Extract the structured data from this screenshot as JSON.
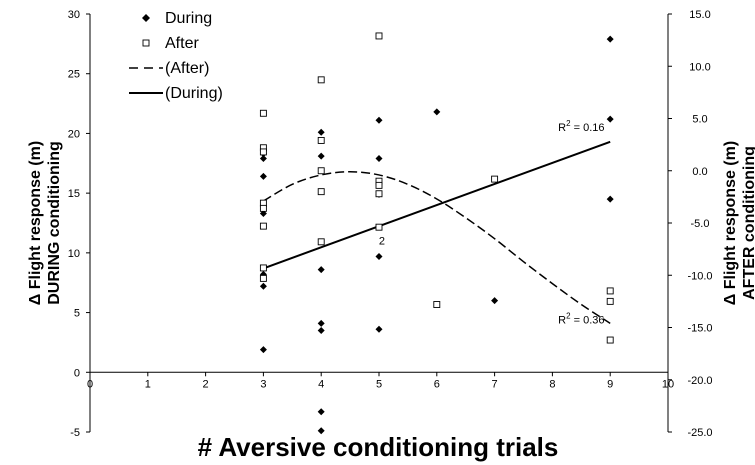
{
  "chart_data": {
    "type": "scatter",
    "xlabel": "# Aversive conditioning trials",
    "ylabel_left": [
      "Δ Flight response (m)",
      "DURING  conditioning"
    ],
    "ylabel_right": [
      "Δ Flight response (m)",
      "AFTER conditioning"
    ],
    "xlim": [
      0,
      10
    ],
    "ylim_left": [
      -5,
      30
    ],
    "ylim_right": [
      -25,
      15
    ],
    "x_ticks": [
      "0",
      "1",
      "2",
      "3",
      "4",
      "5",
      "6",
      "7",
      "8",
      "9",
      "10"
    ],
    "y_ticks_left": [
      "-5",
      "0",
      "5",
      "10",
      "15",
      "20",
      "25",
      "30"
    ],
    "y_ticks_right": [
      "-25.0",
      "-20.0",
      "-15.0",
      "-10.0",
      "-5.0",
      "0.0",
      "5.0",
      "10.0",
      "15.0"
    ],
    "legend": {
      "position": "top-left",
      "entries": [
        "During",
        "After",
        "(After)",
        "(During)"
      ]
    },
    "series": [
      {
        "name": "During",
        "marker": "diamond-filled",
        "axis": "left",
        "points": [
          [
            3,
            18.3
          ],
          [
            3,
            17.9
          ],
          [
            3,
            16.4
          ],
          [
            3,
            13.3
          ],
          [
            3,
            8.2
          ],
          [
            3,
            7.2
          ],
          [
            3,
            1.9
          ],
          [
            4,
            20.1
          ],
          [
            4,
            18.1
          ],
          [
            4,
            8.6
          ],
          [
            4,
            4.1
          ],
          [
            4,
            3.5
          ],
          [
            4,
            -3.3
          ],
          [
            4,
            -4.9
          ],
          [
            5,
            21.1
          ],
          [
            5,
            17.9
          ],
          [
            5,
            14.9
          ],
          [
            5,
            9.7
          ],
          [
            5,
            3.6
          ],
          [
            6,
            21.8
          ],
          [
            7,
            6.0
          ],
          [
            9,
            27.9
          ],
          [
            9,
            21.2
          ],
          [
            9,
            14.5
          ]
        ]
      },
      {
        "name": "After",
        "marker": "square-open",
        "axis": "right",
        "points": [
          [
            3,
            5.5
          ],
          [
            3,
            2.2
          ],
          [
            3,
            1.8
          ],
          [
            3,
            -3.1
          ],
          [
            3,
            -3.6
          ],
          [
            3,
            -5.3
          ],
          [
            3,
            -9.3
          ],
          [
            3,
            -10.3
          ],
          [
            4,
            8.7
          ],
          [
            4,
            2.9
          ],
          [
            4,
            0.0
          ],
          [
            4,
            -2.0
          ],
          [
            4,
            -6.8
          ],
          [
            5,
            12.9
          ],
          [
            5,
            -1.0
          ],
          [
            5,
            -1.4
          ],
          [
            5,
            -2.2
          ],
          [
            5,
            -5.4
          ],
          [
            6,
            -12.8
          ],
          [
            7,
            -0.8
          ],
          [
            9,
            -11.5
          ],
          [
            9,
            -12.5
          ],
          [
            9,
            -16.2
          ]
        ]
      },
      {
        "name": "(After)",
        "line": "dashed",
        "axis": "right",
        "fit": "quadratic",
        "r2_label": "R² = 0.36",
        "curve": [
          [
            3,
            -2.9
          ],
          [
            3.5,
            -1.3
          ],
          [
            4,
            -0.4
          ],
          [
            4.5,
            -0.1
          ],
          [
            5,
            -0.4
          ],
          [
            5.5,
            -1.3
          ],
          [
            6,
            -2.7
          ],
          [
            6.5,
            -4.5
          ],
          [
            7,
            -6.5
          ],
          [
            7.5,
            -8.7
          ],
          [
            8,
            -10.8
          ],
          [
            8.5,
            -12.8
          ],
          [
            9,
            -14.6
          ]
        ]
      },
      {
        "name": "(During)",
        "line": "solid",
        "axis": "left",
        "fit": "linear",
        "r2_label": "R² = 0.16",
        "curve": [
          [
            3,
            8.7
          ],
          [
            9,
            19.3
          ]
        ]
      }
    ],
    "annotations": [
      {
        "text": "2",
        "x": 5.05,
        "y": 10.7
      }
    ]
  }
}
